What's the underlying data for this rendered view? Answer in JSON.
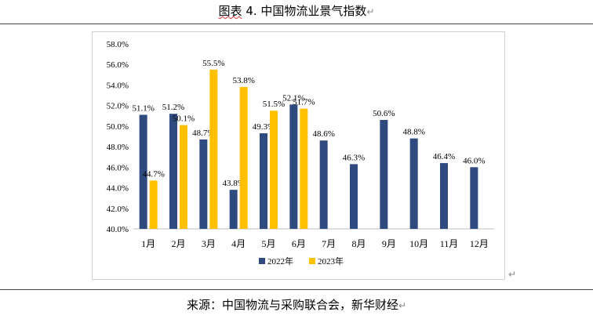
{
  "caption": {
    "prefix": "图表",
    "number": "4.",
    "text": "中国物流业景气指数",
    "para_mark": "↵"
  },
  "source": {
    "text": "来源：中国物流与采购联合会，新华财经",
    "para_mark": "↵"
  },
  "chart_end_mark": "↵",
  "colors": {
    "series_2022": "#2E4A7F",
    "series_2023": "#FFC000",
    "axis": "#bfbfbf"
  },
  "chart_data": {
    "type": "bar",
    "title": "中国物流业景气指数",
    "categories": [
      "1月",
      "2月",
      "3月",
      "4月",
      "5月",
      "6月",
      "7月",
      "8月",
      "9月",
      "10月",
      "11月",
      "12月"
    ],
    "series": [
      {
        "name": "2022年",
        "values": [
          51.1,
          51.2,
          48.7,
          43.8,
          49.3,
          52.1,
          48.6,
          46.3,
          50.6,
          48.8,
          46.4,
          46.0
        ]
      },
      {
        "name": "2023年",
        "values": [
          44.7,
          50.1,
          55.5,
          53.8,
          51.5,
          51.7,
          null,
          null,
          null,
          null,
          null,
          null
        ]
      }
    ],
    "value_labels": {
      "2022年": [
        "51.1%",
        "51.2%",
        "48.7%",
        "43.8%",
        "49.3%",
        "52.1%",
        "48.6%",
        "46.3%",
        "50.6%",
        "48.8%",
        "46.4%",
        "46.0%"
      ],
      "2023年": [
        "44.7%",
        "50.1%",
        "55.5%",
        "53.8%",
        "51.5%",
        "51.7%",
        null,
        null,
        null,
        null,
        null,
        null
      ]
    },
    "ylim": [
      40.0,
      58.0
    ],
    "yticks": [
      "40.0%",
      "42.0%",
      "44.0%",
      "46.0%",
      "48.0%",
      "50.0%",
      "52.0%",
      "54.0%",
      "56.0%",
      "58.0%"
    ],
    "ytick_values": [
      40,
      42,
      44,
      46,
      48,
      50,
      52,
      54,
      56,
      58
    ],
    "grid": false,
    "legend": "bottom",
    "xlabel": "",
    "ylabel": ""
  }
}
